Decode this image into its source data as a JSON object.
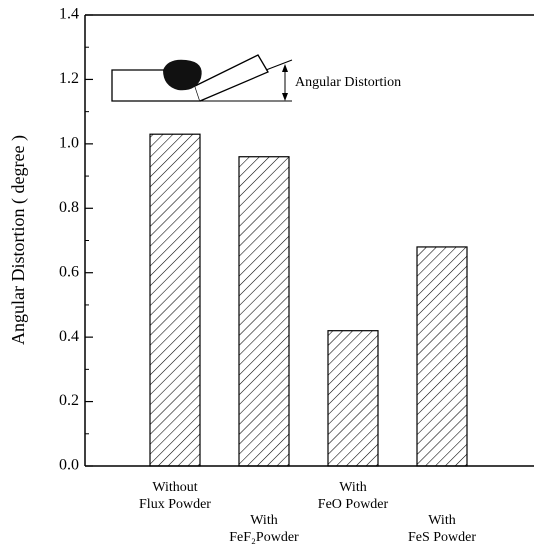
{
  "chart_data": {
    "type": "bar",
    "y_label": "Angular Distortion ( degree )",
    "annotation": "Angular Distortion",
    "categories": [
      "Without\nFlux Powder",
      "With\nFeF₂Powder",
      "With\nFeO Powder",
      "With\nFeS Powder"
    ],
    "values": [
      1.03,
      0.96,
      0.42,
      0.68
    ],
    "color": "#000000",
    "hatch": "diagonal",
    "ylim": [
      0,
      1.4
    ],
    "yticks": [
      {
        "value": 0,
        "label": "0.0"
      },
      0.2,
      0.4,
      0.6,
      0.8,
      {
        "value": 1,
        "label": "1.0"
      },
      1.2,
      1.4
    ]
  }
}
